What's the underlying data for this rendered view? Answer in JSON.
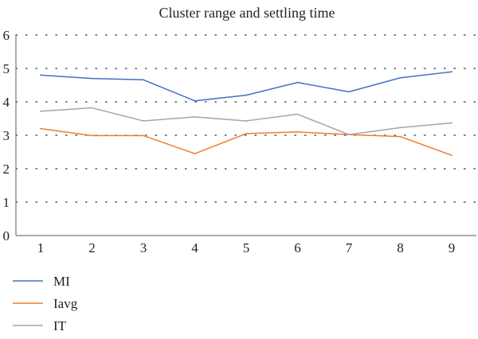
{
  "chart_data": {
    "type": "line",
    "title": "Cluster range and settling time",
    "xlabel": "",
    "ylabel": "",
    "categories": [
      1,
      2,
      3,
      4,
      5,
      6,
      7,
      8,
      9
    ],
    "ylim": [
      0,
      6
    ],
    "yticks": [
      0,
      1,
      2,
      3,
      4,
      5,
      6
    ],
    "grid": "horizontal dotted",
    "legend": "bottom-left",
    "series": [
      {
        "name": "MI",
        "color": "#4472c4",
        "values": [
          4.8,
          4.7,
          4.66,
          4.03,
          4.2,
          4.58,
          4.3,
          4.72,
          4.9
        ]
      },
      {
        "name": "Iavg",
        "color": "#ed7d31",
        "values": [
          3.2,
          2.99,
          2.99,
          2.45,
          3.05,
          3.1,
          3.02,
          2.96,
          2.4
        ]
      },
      {
        "name": "IT",
        "color": "#a5a5a5",
        "values": [
          3.72,
          3.82,
          3.43,
          3.55,
          3.43,
          3.63,
          3.02,
          3.23,
          3.37
        ]
      }
    ]
  }
}
